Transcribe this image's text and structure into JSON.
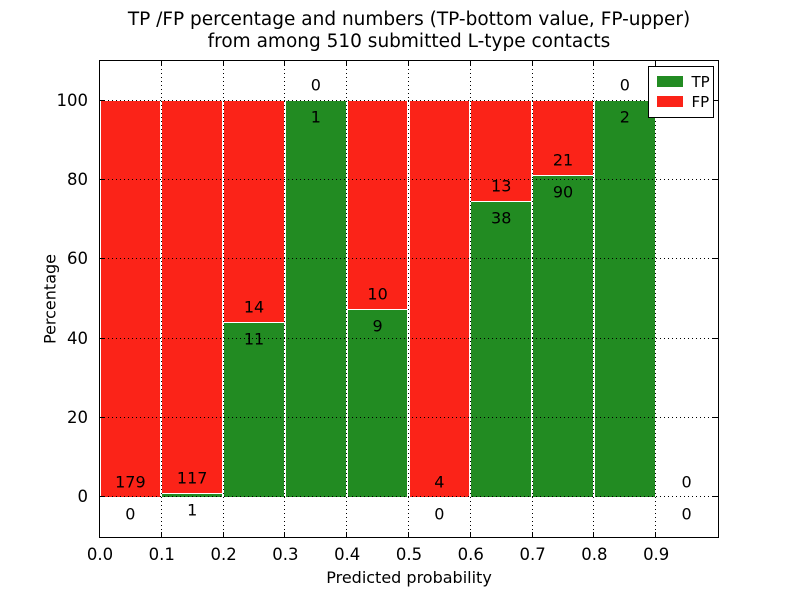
{
  "chart_data": {
    "type": "bar",
    "stacked": true,
    "title_line1": "TP /FP percentage and numbers (TP-bottom value, FP-upper)",
    "title_line2": "from among 510 submitted L-type contacts",
    "xlabel": "Predicted probability",
    "ylabel": "Percentage",
    "xlim": [
      0.0,
      1.0
    ],
    "ylim": [
      -10,
      110
    ],
    "bin_width": 0.1,
    "xticks": [
      0.0,
      0.1,
      0.2,
      0.3,
      0.4,
      0.5,
      0.6,
      0.7,
      0.8,
      0.9
    ],
    "xtick_labels": [
      "0.0",
      "0.1",
      "0.2",
      "0.3",
      "0.4",
      "0.5",
      "0.6",
      "0.7",
      "0.8",
      "0.9"
    ],
    "yticks": [
      0,
      20,
      40,
      60,
      80,
      100
    ],
    "grid": "dotted",
    "total_submitted": 510,
    "colors": {
      "tp": "#228b22",
      "fp": "#fb2318",
      "text": "#000000",
      "background": "#ffffff"
    },
    "legend": {
      "position": "upper right",
      "entries": [
        {
          "label": "TP",
          "color": "#228b22"
        },
        {
          "label": "FP",
          "color": "#fb2318"
        }
      ]
    },
    "categories": [
      "0.0-0.1",
      "0.1-0.2",
      "0.2-0.3",
      "0.3-0.4",
      "0.4-0.5",
      "0.5-0.6",
      "0.6-0.7",
      "0.7-0.8",
      "0.8-0.9",
      "0.9-1.0"
    ],
    "series": [
      {
        "name": "TP",
        "values": [
          0,
          1,
          11,
          1,
          9,
          0,
          38,
          90,
          2,
          0
        ]
      },
      {
        "name": "FP",
        "values": [
          179,
          117,
          14,
          0,
          10,
          4,
          13,
          21,
          0,
          0
        ]
      }
    ],
    "bins": [
      {
        "x0": 0.0,
        "x1": 0.1,
        "tp": 0,
        "fp": 179
      },
      {
        "x0": 0.1,
        "x1": 0.2,
        "tp": 1,
        "fp": 117
      },
      {
        "x0": 0.2,
        "x1": 0.3,
        "tp": 11,
        "fp": 14
      },
      {
        "x0": 0.3,
        "x1": 0.4,
        "tp": 1,
        "fp": 0
      },
      {
        "x0": 0.4,
        "x1": 0.5,
        "tp": 9,
        "fp": 10
      },
      {
        "x0": 0.5,
        "x1": 0.6,
        "tp": 0,
        "fp": 4
      },
      {
        "x0": 0.6,
        "x1": 0.7,
        "tp": 38,
        "fp": 13
      },
      {
        "x0": 0.7,
        "x1": 0.8,
        "tp": 90,
        "fp": 21
      },
      {
        "x0": 0.8,
        "x1": 0.9,
        "tp": 2,
        "fp": 0
      },
      {
        "x0": 0.9,
        "x1": 1.0,
        "tp": 0,
        "fp": 0
      }
    ]
  }
}
